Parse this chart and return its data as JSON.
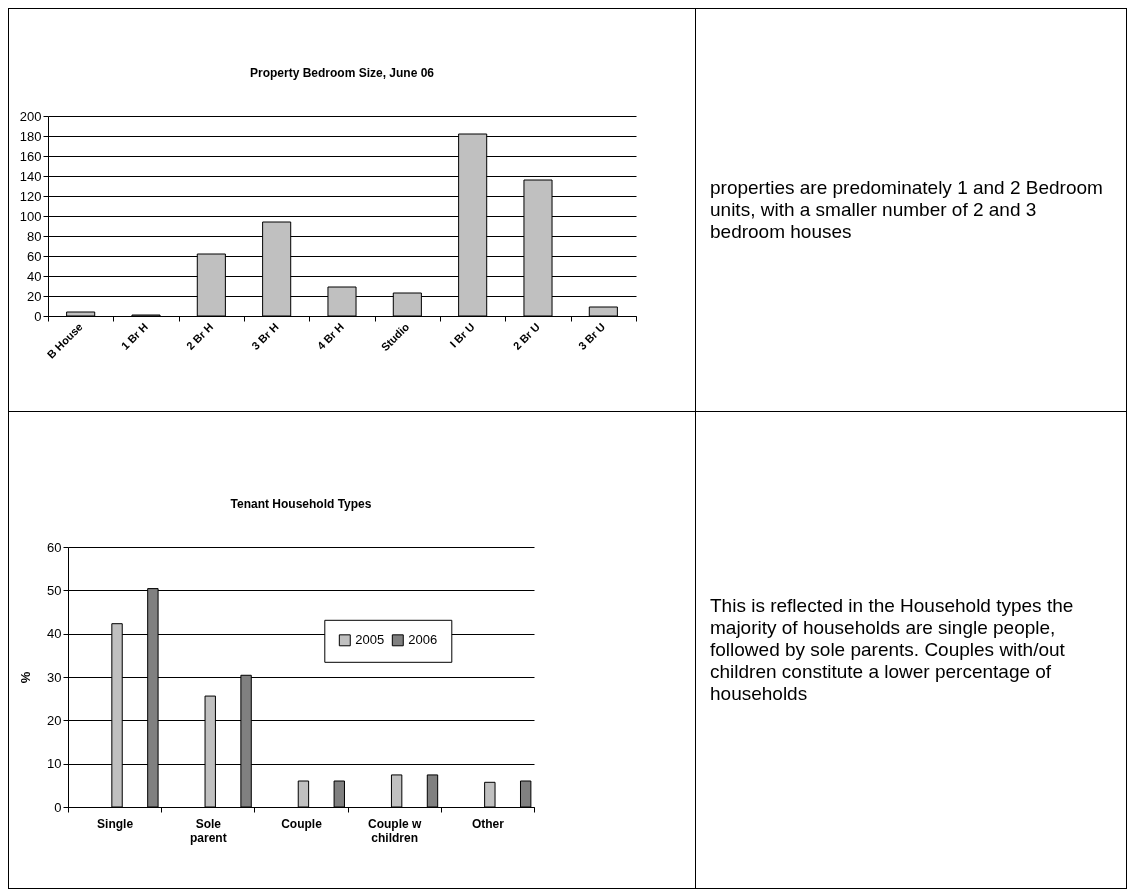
{
  "chart_data": [
    {
      "type": "bar",
      "title": "Property Bedroom Size, June 06",
      "categories": [
        "B House",
        "1 Br H",
        "2 Br H",
        "3 Br H",
        "4 Br H",
        "Studio",
        "I Br U",
        "2 Br U",
        "3 Br U"
      ],
      "values": [
        4,
        1,
        62,
        94,
        29,
        23,
        182,
        136,
        9
      ],
      "color": "#c0c0c0",
      "ylim": [
        0,
        200
      ],
      "yticks": [
        0,
        20,
        40,
        60,
        80,
        100,
        120,
        140,
        160,
        180,
        200
      ],
      "grid": "y",
      "legend": false
    },
    {
      "type": "other",
      "annotations": [
        "properties are predominately 1 and 2 Bedroom units, with a smaller number of 2 and 3 bedroom houses"
      ]
    },
    {
      "type": "bar",
      "title": "Tenant Household Types",
      "ylabel": "%",
      "categories": [
        "Single",
        "Sole parent",
        "Couple",
        "Couple w children",
        "Other"
      ],
      "series": [
        {
          "name": "2005",
          "color": "#c0c0c0",
          "values": [
            42.3,
            25.6,
            6.0,
            7.4,
            5.7
          ]
        },
        {
          "name": "2006",
          "color": "#808080",
          "values": [
            50.4,
            30.4,
            6.0,
            7.4,
            6.0
          ]
        }
      ],
      "ylim": [
        0,
        60
      ],
      "yticks": [
        0,
        10,
        20,
        30,
        40,
        50,
        60
      ],
      "grid": "y",
      "legend": "top right"
    },
    {
      "type": "other",
      "annotations": [
        "This is reflected in the Household types the majority of households are single people, followed by sole parents. Couples with/out children constitute a lower percentage of households"
      ]
    }
  ]
}
